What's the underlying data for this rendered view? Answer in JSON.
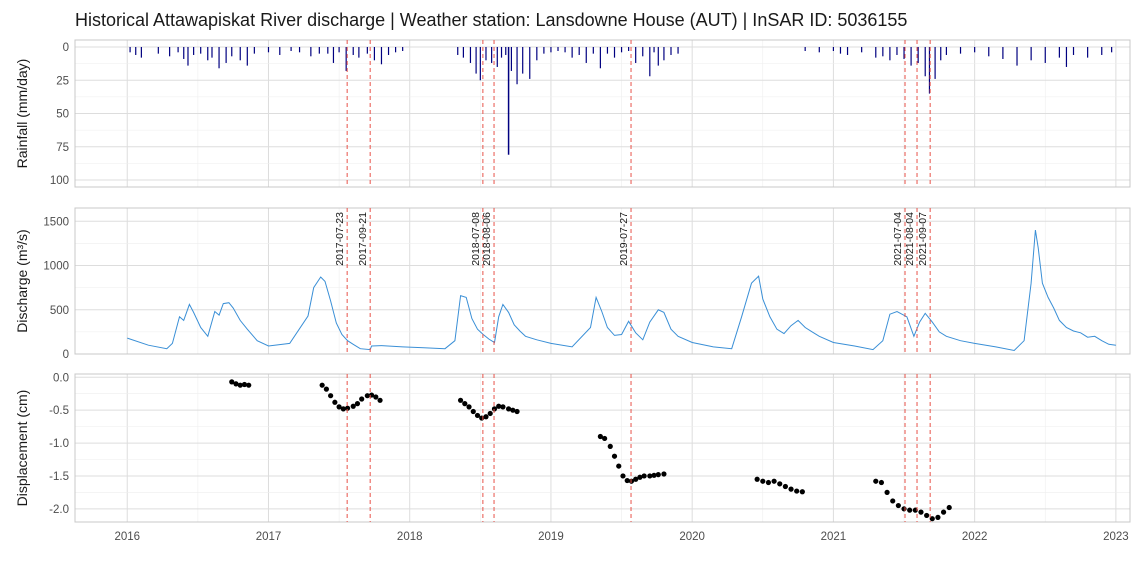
{
  "title": "Historical Attawapiskat River discharge | Weather station: Lansdowne House (AUT) | InSAR ID: 5036155",
  "colors": {
    "rain": "#000080",
    "discharge": "#3a8fd6",
    "displacement": "#000000",
    "event_line": "#e8534a",
    "grid": "#dddddd"
  },
  "chart_data": [
    {
      "type": "bar",
      "ylabel": "Rainfall (mm/day)",
      "ylim": [
        0,
        100
      ],
      "y_reversed": true,
      "yticks": [
        "0",
        "25",
        "50",
        "75",
        "100"
      ],
      "xlim": [
        2015.63,
        2023.1
      ],
      "x": [
        2016.02,
        2016.06,
        2016.1,
        2016.22,
        2016.3,
        2016.36,
        2016.4,
        2016.43,
        2016.47,
        2016.52,
        2016.57,
        2016.6,
        2016.65,
        2016.7,
        2016.74,
        2016.8,
        2016.85,
        2016.9,
        2017.0,
        2017.08,
        2017.16,
        2017.22,
        2017.3,
        2017.36,
        2017.42,
        2017.46,
        2017.5,
        2017.55,
        2017.6,
        2017.64,
        2017.7,
        2017.75,
        2017.8,
        2017.85,
        2017.9,
        2017.95,
        2018.34,
        2018.38,
        2018.43,
        2018.47,
        2018.5,
        2018.54,
        2018.58,
        2018.62,
        2018.65,
        2018.68,
        2018.72,
        2018.76,
        2018.8,
        2018.85,
        2018.9,
        2018.95,
        2019.0,
        2019.05,
        2019.1,
        2019.15,
        2019.2,
        2019.25,
        2019.3,
        2019.35,
        2019.4,
        2019.45,
        2019.5,
        2019.55,
        2019.6,
        2019.65,
        2019.7,
        2019.73,
        2019.76,
        2019.8,
        2019.85,
        2019.9,
        2020.8,
        2020.9,
        2021.0,
        2021.05,
        2021.1,
        2021.2,
        2021.3,
        2021.35,
        2021.4,
        2021.45,
        2021.5,
        2021.55,
        2021.6,
        2021.65,
        2021.68,
        2021.72,
        2021.76,
        2021.8,
        2021.9,
        2022.0,
        2022.1,
        2022.2,
        2022.3,
        2022.4,
        2022.5,
        2022.6,
        2022.65,
        2022.7,
        2022.8,
        2022.9,
        2022.97
      ],
      "values": [
        4,
        6,
        8,
        5,
        7,
        4,
        9,
        14,
        6,
        5,
        10,
        8,
        16,
        12,
        7,
        10,
        14,
        5,
        4,
        6,
        3,
        4,
        7,
        5,
        5,
        12,
        4,
        18,
        6,
        8,
        5,
        10,
        13,
        6,
        4,
        3,
        6,
        8,
        12,
        20,
        25,
        10,
        12,
        15,
        8,
        6,
        18,
        28,
        20,
        24,
        10,
        5,
        4,
        3,
        4,
        8,
        6,
        12,
        5,
        16,
        5,
        8,
        4,
        3,
        12,
        7,
        22,
        4,
        14,
        10,
        6,
        5,
        3,
        4,
        3,
        5,
        6,
        4,
        8,
        7,
        10,
        6,
        9,
        14,
        12,
        22,
        35,
        24,
        10,
        6,
        5,
        4,
        7,
        9,
        14,
        10,
        12,
        8,
        15,
        6,
        8,
        6,
        4
      ],
      "spike_x": [
        2018.7
      ],
      "spike_values": [
        81
      ]
    },
    {
      "type": "line",
      "ylabel": "Discharge (m³/s)",
      "ylim": [
        0,
        1650
      ],
      "yticks": [
        "0",
        "500",
        "1000",
        "1500"
      ],
      "xlim": [
        2015.63,
        2023.1
      ],
      "x": [
        2016.0,
        2016.15,
        2016.28,
        2016.32,
        2016.37,
        2016.4,
        2016.44,
        2016.47,
        2016.52,
        2016.57,
        2016.62,
        2016.65,
        2016.68,
        2016.72,
        2016.75,
        2016.8,
        2016.85,
        2016.92,
        2017.0,
        2017.15,
        2017.28,
        2017.32,
        2017.37,
        2017.4,
        2017.44,
        2017.48,
        2017.52,
        2017.56,
        2017.6,
        2017.65,
        2017.72,
        2017.73,
        2017.8,
        2017.95,
        2018.1,
        2018.25,
        2018.32,
        2018.36,
        2018.4,
        2018.44,
        2018.48,
        2018.52,
        2018.56,
        2018.6,
        2018.63,
        2018.66,
        2018.7,
        2018.74,
        2018.78,
        2018.82,
        2018.9,
        2019.0,
        2019.15,
        2019.28,
        2019.32,
        2019.36,
        2019.4,
        2019.45,
        2019.5,
        2019.55,
        2019.6,
        2019.65,
        2019.7,
        2019.76,
        2019.8,
        2019.85,
        2019.9,
        2020.0,
        2020.15,
        2020.28,
        2020.35,
        2020.42,
        2020.47,
        2020.5,
        2020.55,
        2020.6,
        2020.65,
        2020.7,
        2020.75,
        2020.8,
        2020.85,
        2020.9,
        2021.0,
        2021.15,
        2021.28,
        2021.35,
        2021.4,
        2021.45,
        2021.52,
        2021.57,
        2021.61,
        2021.65,
        2021.7,
        2021.75,
        2021.8,
        2021.9,
        2022.0,
        2022.15,
        2022.28,
        2022.35,
        2022.4,
        2022.43,
        2022.45,
        2022.48,
        2022.52,
        2022.56,
        2022.6,
        2022.65,
        2022.7,
        2022.75,
        2022.8,
        2022.85,
        2022.9,
        2022.95,
        2023.0
      ],
      "values": [
        180,
        100,
        60,
        120,
        420,
        380,
        560,
        470,
        300,
        200,
        480,
        440,
        570,
        580,
        520,
        380,
        280,
        150,
        90,
        120,
        430,
        750,
        870,
        820,
        600,
        350,
        220,
        150,
        110,
        60,
        50,
        90,
        95,
        80,
        70,
        60,
        150,
        660,
        640,
        400,
        280,
        220,
        170,
        130,
        420,
        560,
        470,
        330,
        260,
        200,
        160,
        120,
        80,
        300,
        640,
        480,
        300,
        210,
        220,
        370,
        240,
        160,
        360,
        500,
        470,
        280,
        200,
        130,
        80,
        60,
        420,
        800,
        880,
        620,
        420,
        280,
        230,
        320,
        380,
        300,
        250,
        200,
        130,
        90,
        50,
        150,
        450,
        480,
        420,
        200,
        360,
        460,
        360,
        250,
        200,
        150,
        120,
        80,
        40,
        150,
        800,
        1400,
        1200,
        800,
        640,
        520,
        380,
        300,
        260,
        240,
        190,
        200,
        150,
        110,
        100
      ],
      "events": [
        "2017-07-23",
        "2017-09-21",
        "2018-07-08",
        "2018-08-06",
        "2019-07-27",
        "2021-07-04",
        "2021-08-04",
        "2021-09-07"
      ],
      "event_x": [
        2017.557,
        2017.72,
        2018.518,
        2018.597,
        2019.567,
        2021.507,
        2021.592,
        2021.685
      ]
    },
    {
      "type": "scatter",
      "ylabel": "Displacement (cm)",
      "ylim": [
        -2.2,
        0.05
      ],
      "yticks": [
        "0.0",
        "-0.5",
        "-1.0",
        "-1.5",
        "-2.0"
      ],
      "xlim": [
        2015.63,
        2023.1
      ],
      "xticks": [
        "2016",
        "2017",
        "2018",
        "2019",
        "2020",
        "2021",
        "2022",
        "2023"
      ],
      "x": [
        2016.74,
        2016.77,
        2016.8,
        2016.83,
        2016.86,
        2017.38,
        2017.41,
        2017.44,
        2017.47,
        2017.5,
        2017.53,
        2017.56,
        2017.6,
        2017.63,
        2017.66,
        2017.7,
        2017.73,
        2017.76,
        2017.79,
        2018.36,
        2018.39,
        2018.42,
        2018.45,
        2018.48,
        2018.51,
        2018.54,
        2018.57,
        2018.6,
        2018.63,
        2018.66,
        2018.7,
        2018.73,
        2018.76,
        2019.35,
        2019.38,
        2019.42,
        2019.45,
        2019.48,
        2019.51,
        2019.54,
        2019.57,
        2019.6,
        2019.63,
        2019.66,
        2019.7,
        2019.73,
        2019.76,
        2019.8,
        2020.46,
        2020.5,
        2020.54,
        2020.58,
        2020.62,
        2020.66,
        2020.7,
        2020.74,
        2020.78,
        2021.3,
        2021.34,
        2021.38,
        2021.42,
        2021.46,
        2021.5,
        2021.54,
        2021.58,
        2021.62,
        2021.66,
        2021.7,
        2021.74,
        2021.78,
        2021.82
      ],
      "values": [
        -0.07,
        -0.1,
        -0.12,
        -0.11,
        -0.12,
        -0.12,
        -0.18,
        -0.28,
        -0.38,
        -0.45,
        -0.48,
        -0.47,
        -0.44,
        -0.4,
        -0.33,
        -0.28,
        -0.27,
        -0.3,
        -0.35,
        -0.35,
        -0.4,
        -0.45,
        -0.52,
        -0.58,
        -0.62,
        -0.6,
        -0.55,
        -0.48,
        -0.44,
        -0.45,
        -0.48,
        -0.5,
        -0.52,
        -0.9,
        -0.93,
        -1.05,
        -1.2,
        -1.35,
        -1.5,
        -1.57,
        -1.58,
        -1.55,
        -1.52,
        -1.5,
        -1.5,
        -1.49,
        -1.48,
        -1.47,
        -1.55,
        -1.58,
        -1.6,
        -1.58,
        -1.62,
        -1.66,
        -1.7,
        -1.73,
        -1.74,
        -1.58,
        -1.6,
        -1.75,
        -1.88,
        -1.95,
        -2.0,
        -2.02,
        -2.02,
        -2.05,
        -2.1,
        -2.15,
        -2.13,
        -2.05,
        -1.98
      ]
    }
  ]
}
